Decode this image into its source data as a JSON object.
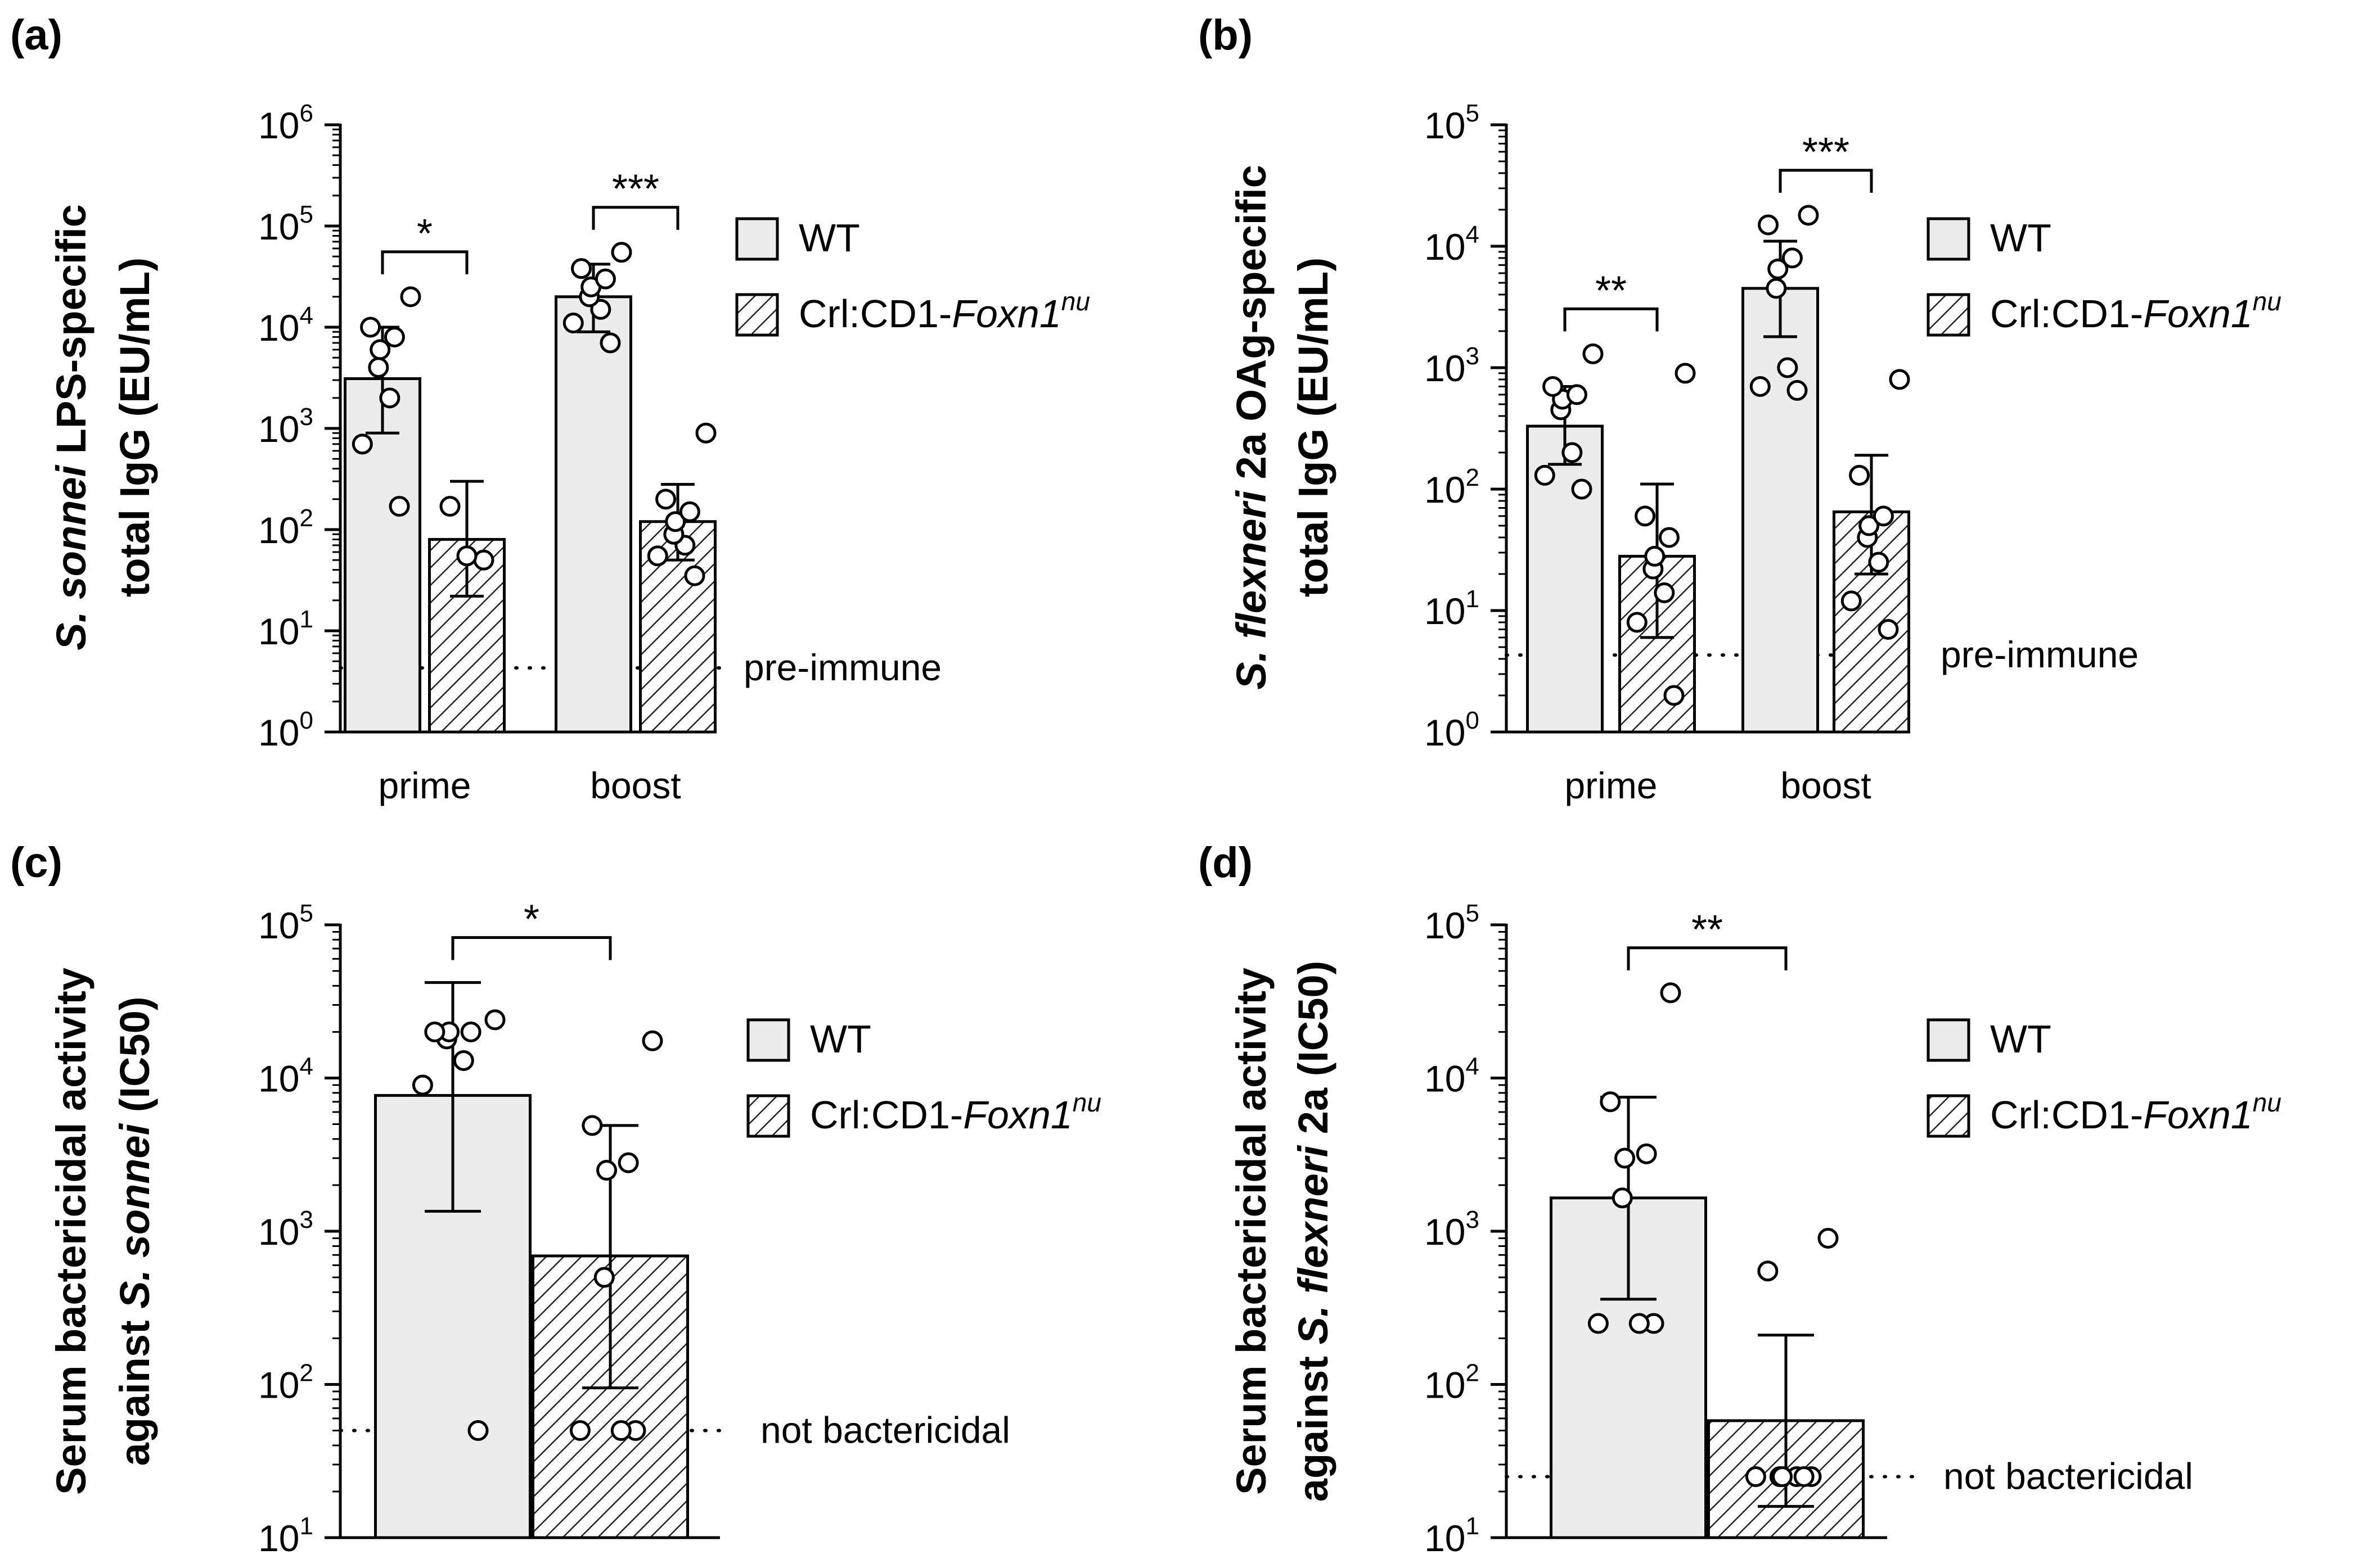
{
  "legend": {
    "wt": "WT",
    "nude_prefix": "Crl:CD1-",
    "nude_gene": "Foxn1",
    "nude_sup": "nu"
  },
  "colors": {
    "wt_fill": "#ececec",
    "hatch": "#222222",
    "axis": "#000000"
  },
  "chart_data": [
    {
      "panel": "(a)",
      "type": "bar",
      "yscale": "log",
      "ylim": [
        1,
        1000000
      ],
      "yticks": [
        {
          "base": "10",
          "exp": "0"
        },
        {
          "base": "10",
          "exp": "1"
        },
        {
          "base": "10",
          "exp": "2"
        },
        {
          "base": "10",
          "exp": "3"
        },
        {
          "base": "10",
          "exp": "4"
        },
        {
          "base": "10",
          "exp": "5"
        },
        {
          "base": "10",
          "exp": "6"
        }
      ],
      "ylabel_lines": [
        [
          {
            "t": "S. sonnei",
            "i": true
          },
          {
            "t": " LPS-specific",
            "i": false
          }
        ],
        [
          {
            "t": "total IgG (EU/mL)",
            "i": false
          }
        ]
      ],
      "categories": [
        "prime",
        "boost"
      ],
      "series": [
        {
          "name": "WT",
          "values": [
            3100,
            20000
          ],
          "err_low": [
            900,
            9000
          ],
          "err_high": [
            10000,
            42000
          ],
          "points": [
            [
              170,
              700,
              2000,
              4000,
              6000,
              8000,
              10000,
              20000
            ],
            [
              7000,
              11000,
              15000,
              20000,
              25000,
              30000,
              38000,
              55000
            ]
          ]
        },
        {
          "name": "Crl:CD1-Foxn1nu",
          "values": [
            80,
            120
          ],
          "err_low": [
            22,
            50
          ],
          "err_high": [
            300,
            280
          ],
          "points": [
            [
              50,
              55,
              170
            ],
            [
              35,
              55,
              70,
              90,
              120,
              150,
              200,
              900
            ]
          ]
        }
      ],
      "significance": [
        "*",
        "***"
      ],
      "reference_line": {
        "value": 4.3,
        "label": "pre-immune"
      }
    },
    {
      "panel": "(b)",
      "type": "bar",
      "yscale": "log",
      "ylim": [
        1,
        100000
      ],
      "yticks": [
        {
          "base": "10",
          "exp": "0"
        },
        {
          "base": "10",
          "exp": "1"
        },
        {
          "base": "10",
          "exp": "2"
        },
        {
          "base": "10",
          "exp": "3"
        },
        {
          "base": "10",
          "exp": "4"
        },
        {
          "base": "10",
          "exp": "5"
        }
      ],
      "ylabel_lines": [
        [
          {
            "t": "S. flexneri",
            "i": true
          },
          {
            "t": " 2a OAg-specific",
            "i": false
          }
        ],
        [
          {
            "t": "total IgG (EU/mL)",
            "i": false
          }
        ]
      ],
      "categories": [
        "prime",
        "boost"
      ],
      "series": [
        {
          "name": "WT",
          "values": [
            330,
            4500
          ],
          "err_low": [
            160,
            1800
          ],
          "err_high": [
            700,
            11000
          ],
          "points": [
            [
              100,
              130,
              200,
              450,
              550,
              600,
              700,
              1300
            ],
            [
              650,
              700,
              1000,
              4500,
              6500,
              8000,
              15000,
              18000
            ]
          ]
        },
        {
          "name": "Crl:CD1-Foxn1nu",
          "values": [
            28,
            65
          ],
          "err_low": [
            6,
            20
          ],
          "err_high": [
            110,
            190
          ],
          "points": [
            [
              2,
              8,
              14,
              22,
              28,
              40,
              60,
              900
            ],
            [
              7,
              12,
              25,
              40,
              50,
              60,
              130,
              800
            ]
          ]
        }
      ],
      "significance": [
        "**",
        "***"
      ],
      "reference_line": {
        "value": 4.3,
        "label": "pre-immune"
      }
    },
    {
      "panel": "(c)",
      "type": "bar",
      "yscale": "log",
      "ylim": [
        10,
        100000
      ],
      "yticks": [
        {
          "base": "10",
          "exp": "1"
        },
        {
          "base": "10",
          "exp": "2"
        },
        {
          "base": "10",
          "exp": "3"
        },
        {
          "base": "10",
          "exp": "4"
        },
        {
          "base": "10",
          "exp": "5"
        }
      ],
      "ylabel_lines": [
        [
          {
            "t": "Serum bactericidal activity",
            "i": false
          }
        ],
        [
          {
            "t": "against ",
            "i": false
          },
          {
            "t": "S. sonnei",
            "i": true
          },
          {
            "t": " (IC50)",
            "i": false
          }
        ]
      ],
      "categories": [
        ""
      ],
      "series": [
        {
          "name": "WT",
          "values": [
            7700
          ],
          "err_low": [
            1350
          ],
          "err_high": [
            42000
          ],
          "points": [
            [
              50,
              9000,
              13000,
              18000,
              20000,
              20000,
              20000,
              24000
            ]
          ]
        },
        {
          "name": "Crl:CD1-Foxn1nu",
          "values": [
            690
          ],
          "err_low": [
            95
          ],
          "err_high": [
            4900
          ],
          "points": [
            [
              50,
              50,
              50,
              500,
              2500,
              2800,
              4900,
              17500
            ]
          ]
        }
      ],
      "significance": [
        "*"
      ],
      "reference_line": {
        "value": 50,
        "label": "not bactericidal"
      }
    },
    {
      "panel": "(d)",
      "type": "bar",
      "yscale": "log",
      "ylim": [
        10,
        100000
      ],
      "yticks": [
        {
          "base": "10",
          "exp": "1"
        },
        {
          "base": "10",
          "exp": "2"
        },
        {
          "base": "10",
          "exp": "3"
        },
        {
          "base": "10",
          "exp": "4"
        },
        {
          "base": "10",
          "exp": "5"
        }
      ],
      "ylabel_lines": [
        [
          {
            "t": "Serum bactericidal activity",
            "i": false
          }
        ],
        [
          {
            "t": "against ",
            "i": false
          },
          {
            "t": "S. flexneri",
            "i": true
          },
          {
            "t": " 2a (IC50)",
            "i": false
          }
        ]
      ],
      "categories": [
        ""
      ],
      "series": [
        {
          "name": "WT",
          "values": [
            1650
          ],
          "err_low": [
            360
          ],
          "err_high": [
            7500
          ],
          "points": [
            [
              250,
              250,
              250,
              1650,
              3000,
              3200,
              7000,
              36000
            ]
          ]
        },
        {
          "name": "Crl:CD1-Foxn1nu",
          "values": [
            58
          ],
          "err_low": [
            16
          ],
          "err_high": [
            210
          ],
          "points": [
            [
              25,
              25,
              25,
              25,
              25,
              25,
              550,
              900
            ]
          ]
        }
      ],
      "significance": [
        "**"
      ],
      "reference_line": {
        "value": 25,
        "label": "not bactericidal"
      }
    }
  ]
}
